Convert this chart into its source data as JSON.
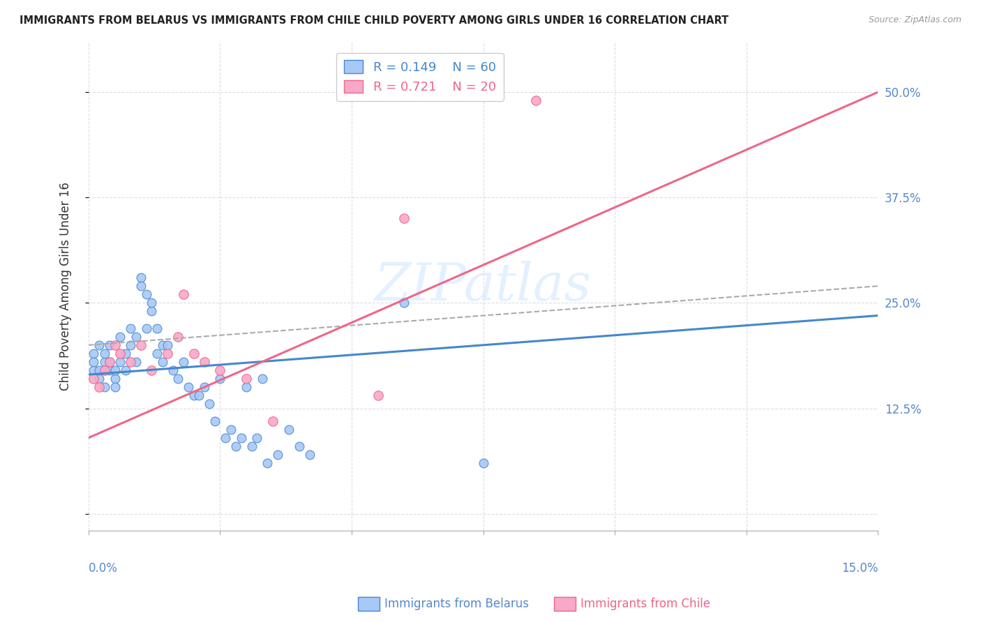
{
  "title": "IMMIGRANTS FROM BELARUS VS IMMIGRANTS FROM CHILE CHILD POVERTY AMONG GIRLS UNDER 16 CORRELATION CHART",
  "source": "Source: ZipAtlas.com",
  "ylabel": "Child Poverty Among Girls Under 16",
  "y_ticks": [
    0.0,
    0.125,
    0.25,
    0.375,
    0.5
  ],
  "y_tick_labels": [
    "",
    "12.5%",
    "25.0%",
    "37.5%",
    "50.0%"
  ],
  "x_range": [
    0.0,
    0.15
  ],
  "y_range": [
    -0.02,
    0.56
  ],
  "legend_r1": "R = 0.149",
  "legend_n1": "N = 60",
  "legend_r2": "R = 0.721",
  "legend_n2": "N = 20",
  "color_belarus": "#a8c8f8",
  "color_chile": "#f8a8c8",
  "color_line_belarus": "#4488cc",
  "color_line_chile": "#ee6688",
  "color_dashed": "#aaaaaa",
  "watermark": "ZIPatlas",
  "belarus_x": [
    0.001,
    0.001,
    0.001,
    0.002,
    0.002,
    0.002,
    0.003,
    0.003,
    0.003,
    0.003,
    0.004,
    0.004,
    0.004,
    0.005,
    0.005,
    0.005,
    0.006,
    0.006,
    0.007,
    0.007,
    0.008,
    0.008,
    0.009,
    0.009,
    0.01,
    0.01,
    0.011,
    0.011,
    0.012,
    0.012,
    0.013,
    0.013,
    0.014,
    0.014,
    0.015,
    0.016,
    0.017,
    0.018,
    0.019,
    0.02,
    0.021,
    0.022,
    0.023,
    0.024,
    0.025,
    0.026,
    0.027,
    0.028,
    0.029,
    0.03,
    0.031,
    0.032,
    0.033,
    0.034,
    0.036,
    0.038,
    0.04,
    0.042,
    0.06,
    0.075
  ],
  "belarus_y": [
    0.17,
    0.19,
    0.18,
    0.16,
    0.17,
    0.2,
    0.18,
    0.17,
    0.19,
    0.15,
    0.17,
    0.18,
    0.2,
    0.16,
    0.17,
    0.15,
    0.18,
    0.21,
    0.19,
    0.17,
    0.2,
    0.22,
    0.21,
    0.18,
    0.28,
    0.27,
    0.26,
    0.22,
    0.24,
    0.25,
    0.22,
    0.19,
    0.2,
    0.18,
    0.2,
    0.17,
    0.16,
    0.18,
    0.15,
    0.14,
    0.14,
    0.15,
    0.13,
    0.11,
    0.16,
    0.09,
    0.1,
    0.08,
    0.09,
    0.15,
    0.08,
    0.09,
    0.16,
    0.06,
    0.07,
    0.1,
    0.08,
    0.07,
    0.25,
    0.06
  ],
  "chile_x": [
    0.001,
    0.002,
    0.003,
    0.004,
    0.005,
    0.006,
    0.008,
    0.01,
    0.012,
    0.015,
    0.017,
    0.018,
    0.02,
    0.022,
    0.025,
    0.03,
    0.035,
    0.055,
    0.06,
    0.085
  ],
  "chile_y": [
    0.16,
    0.15,
    0.17,
    0.18,
    0.2,
    0.19,
    0.18,
    0.2,
    0.17,
    0.19,
    0.21,
    0.26,
    0.19,
    0.18,
    0.17,
    0.16,
    0.11,
    0.14,
    0.35,
    0.49
  ],
  "belarus_line_x": [
    0.0,
    0.15
  ],
  "belarus_line_y": [
    0.165,
    0.235
  ],
  "dashed_line_x": [
    0.0,
    0.15
  ],
  "dashed_line_y": [
    0.2,
    0.27
  ],
  "chile_line_x": [
    0.0,
    0.15
  ],
  "chile_line_y": [
    0.09,
    0.5
  ]
}
